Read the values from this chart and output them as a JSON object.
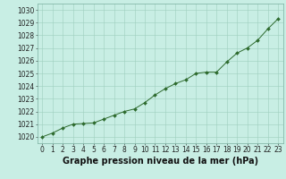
{
  "x": [
    0,
    1,
    2,
    3,
    4,
    5,
    6,
    7,
    8,
    9,
    10,
    11,
    12,
    13,
    14,
    15,
    16,
    17,
    18,
    19,
    20,
    21,
    22,
    23
  ],
  "y": [
    1020.0,
    1020.3,
    1020.7,
    1021.0,
    1021.05,
    1021.1,
    1021.4,
    1021.7,
    1022.0,
    1022.2,
    1022.7,
    1023.3,
    1023.8,
    1024.2,
    1024.5,
    1025.0,
    1025.1,
    1025.1,
    1025.9,
    1026.6,
    1027.0,
    1027.6,
    1028.5,
    1029.3
  ],
  "ylim": [
    1019.5,
    1030.5
  ],
  "xlim": [
    -0.5,
    23.5
  ],
  "yticks": [
    1020,
    1021,
    1022,
    1023,
    1024,
    1025,
    1026,
    1027,
    1028,
    1029,
    1030
  ],
  "xticks": [
    0,
    1,
    2,
    3,
    4,
    5,
    6,
    7,
    8,
    9,
    10,
    11,
    12,
    13,
    14,
    15,
    16,
    17,
    18,
    19,
    20,
    21,
    22,
    23
  ],
  "line_color": "#2d6a2d",
  "marker_color": "#2d6a2d",
  "bg_color": "#c8eee4",
  "grid_color": "#9ecebe",
  "xlabel": "Graphe pression niveau de la mer (hPa)",
  "xlabel_fontsize": 7,
  "tick_fontsize": 5.5,
  "fig_bg": "#c8eee4",
  "spine_color": "#7ab0a0"
}
